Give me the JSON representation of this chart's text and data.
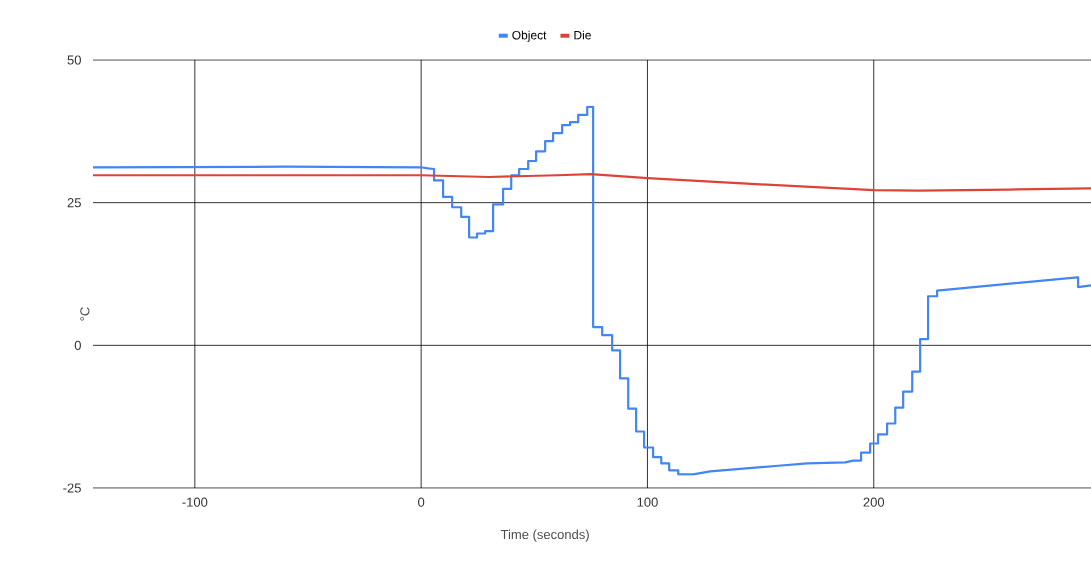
{
  "chart_data": {
    "type": "line",
    "xlabel": "Time (seconds)",
    "ylabel": "°C",
    "xlim": [
      -145,
      296
    ],
    "ylim": [
      -25,
      50
    ],
    "xticks": [
      -100,
      0,
      100,
      200
    ],
    "yticks": [
      -25,
      0,
      25,
      50
    ],
    "grid": true,
    "legend": "top",
    "marker": "none",
    "line_style": "solid",
    "series": [
      {
        "name": "Object",
        "color": "#4285f4",
        "x": [
          -145,
          -60,
          0,
          3,
          5.7,
          5.7,
          9.7,
          9.7,
          13.7,
          13.7,
          17.7,
          17.7,
          21.2,
          21.2,
          24.7,
          24.7,
          28.3,
          28.3,
          31.8,
          31.8,
          36.2,
          36.2,
          39.8,
          39.8,
          43.3,
          43.3,
          47.3,
          47.3,
          50.8,
          50.8,
          54.8,
          54.8,
          58.3,
          58.3,
          62.3,
          62.3,
          65.8,
          65.8,
          69.4,
          69.4,
          73.4,
          73.4,
          76.0,
          76.0,
          80.0,
          80.0,
          84.4,
          84.4,
          87.9,
          87.9,
          91.5,
          91.5,
          95.0,
          95.0,
          98.5,
          98.5,
          102.5,
          102.5,
          106.1,
          106.1,
          109.6,
          109.6,
          113.6,
          113.6,
          120.2,
          127.7,
          139.6,
          157.8,
          170.6,
          187.4,
          190.9,
          194.4,
          194.4,
          198.4,
          198.4,
          201.9,
          201.9,
          205.9,
          205.9,
          209.5,
          209.5,
          213.0,
          213.0,
          217.0,
          217.0,
          220.5,
          220.5,
          224.0,
          224.0,
          228.0,
          228.0,
          289.9,
          290.3,
          290.3,
          296
        ],
        "values": [
          31.2,
          31.3,
          31.2,
          31.0,
          30.9,
          28.9,
          28.9,
          26.0,
          26.0,
          24.2,
          24.2,
          22.5,
          22.5,
          18.9,
          18.9,
          19.6,
          19.6,
          20.0,
          20.0,
          24.7,
          24.7,
          27.4,
          27.4,
          29.8,
          29.8,
          30.9,
          30.9,
          32.3,
          32.3,
          34.0,
          34.0,
          35.8,
          35.8,
          37.2,
          37.2,
          38.6,
          38.6,
          39.1,
          39.1,
          40.4,
          40.4,
          41.8,
          41.8,
          3.2,
          3.2,
          1.8,
          1.8,
          -0.9,
          -0.9,
          -5.8,
          -5.8,
          -11.1,
          -11.1,
          -15.1,
          -15.1,
          -17.9,
          -17.9,
          -19.6,
          -19.6,
          -20.7,
          -20.7,
          -21.9,
          -21.9,
          -22.6,
          -22.6,
          -22.1,
          -21.7,
          -21.1,
          -20.7,
          -20.5,
          -20.2,
          -20.2,
          -18.8,
          -18.8,
          -17.2,
          -17.2,
          -15.6,
          -15.6,
          -13.7,
          -13.7,
          -10.9,
          -10.9,
          -8.1,
          -8.1,
          -4.6,
          -4.6,
          1.1,
          1.1,
          8.6,
          8.6,
          9.6,
          11.9,
          11.9,
          10.2,
          10.5
        ]
      },
      {
        "name": "Die",
        "color": "#db4437",
        "x": [
          -145,
          0,
          30,
          60,
          75,
          100,
          150,
          200,
          220,
          260,
          296
        ],
        "values": [
          29.8,
          29.8,
          29.5,
          29.8,
          30.0,
          29.3,
          28.2,
          27.2,
          27.1,
          27.3,
          27.5
        ]
      }
    ]
  }
}
